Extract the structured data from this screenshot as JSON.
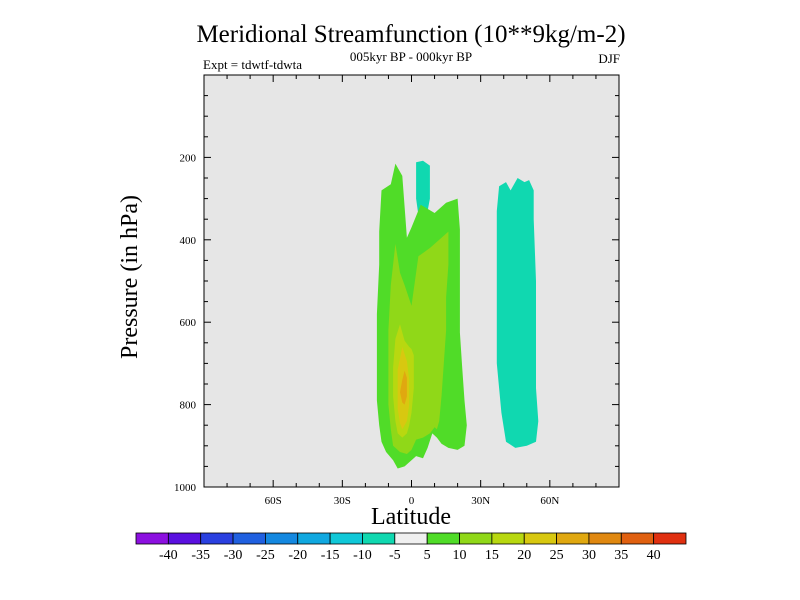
{
  "chart_data": {
    "type": "contour",
    "title": "Meridional Streamfunction (10**9kg/m-2)",
    "subtitle": "005kyr BP - 000kyr BP",
    "expt_label": "Expt = tdwtf-tdwta",
    "season": "DJF",
    "xlabel": "Latitude",
    "ylabel": "Pressure (in hPa)",
    "xlim": [
      -90,
      90
    ],
    "ylim": [
      0,
      1000
    ],
    "x_ticks": [
      {
        "value": -60,
        "label": "60S"
      },
      {
        "value": -30,
        "label": "30S"
      },
      {
        "value": 0,
        "label": "0"
      },
      {
        "value": 30,
        "label": "30N"
      },
      {
        "value": 60,
        "label": "60N"
      }
    ],
    "y_ticks": [
      {
        "value": 200,
        "label": "200"
      },
      {
        "value": 400,
        "label": "400"
      },
      {
        "value": 600,
        "label": "600"
      },
      {
        "value": 800,
        "label": "800"
      },
      {
        "value": 1000,
        "label": "1000"
      }
    ],
    "colorbar": {
      "labels": [
        "-40",
        "-35",
        "-30",
        "-25",
        "-20",
        "-15",
        "-10",
        "-5",
        "5",
        "10",
        "15",
        "20",
        "25",
        "30",
        "35",
        "40"
      ],
      "colors": [
        "#8c10e0",
        "#5a10e0",
        "#2a40e0",
        "#2060e0",
        "#1488e0",
        "#10a8e0",
        "#10c8d8",
        "#10d8b0",
        "#f0f0f0",
        "#50dc28",
        "#90d818",
        "#b8d810",
        "#d8c810",
        "#e0a810",
        "#e08810",
        "#e06010",
        "#e03010"
      ]
    },
    "regions": [
      {
        "name": "cell-sh-upper-teal",
        "level": "-10 to -5",
        "color": "#10d8b0",
        "points": [
          [
            2,
            212
          ],
          [
            5,
            208
          ],
          [
            8,
            220
          ],
          [
            8,
            260
          ],
          [
            8,
            300
          ],
          [
            7,
            330
          ],
          [
            5,
            345
          ],
          [
            3,
            340
          ],
          [
            2,
            300
          ],
          [
            2,
            250
          ]
        ]
      },
      {
        "name": "cell-nh-teal",
        "level": "-10 to -5",
        "color": "#10d8b0",
        "points": [
          [
            38,
            270
          ],
          [
            41,
            260
          ],
          [
            43,
            280
          ],
          [
            46,
            250
          ],
          [
            49,
            260
          ],
          [
            51,
            255
          ],
          [
            53,
            280
          ],
          [
            53,
            350
          ],
          [
            54,
            500
          ],
          [
            54,
            640
          ],
          [
            54,
            760
          ],
          [
            55,
            840
          ],
          [
            54,
            890
          ],
          [
            50,
            900
          ],
          [
            45,
            905
          ],
          [
            41,
            890
          ],
          [
            39,
            820
          ],
          [
            37,
            700
          ],
          [
            37,
            550
          ],
          [
            37,
            420
          ],
          [
            37,
            330
          ]
        ]
      },
      {
        "name": "cell-main-green",
        "level": "5 to 10",
        "color": "#50dc28",
        "points": [
          [
            -13,
            280
          ],
          [
            -9,
            265
          ],
          [
            -7,
            215
          ],
          [
            -4,
            245
          ],
          [
            -3,
            320
          ],
          [
            -2,
            395
          ],
          [
            0,
            370
          ],
          [
            4,
            315
          ],
          [
            10,
            335
          ],
          [
            15,
            310
          ],
          [
            20,
            300
          ],
          [
            21,
            375
          ],
          [
            21,
            450
          ],
          [
            21,
            540
          ],
          [
            21,
            625
          ],
          [
            22,
            710
          ],
          [
            23,
            790
          ],
          [
            24,
            850
          ],
          [
            23,
            900
          ],
          [
            20,
            910
          ],
          [
            16,
            905
          ],
          [
            13,
            895
          ],
          [
            11,
            880
          ],
          [
            9,
            870
          ],
          [
            7,
            905
          ],
          [
            5,
            930
          ],
          [
            2,
            925
          ],
          [
            0,
            935
          ],
          [
            -3,
            950
          ],
          [
            -6,
            955
          ],
          [
            -8,
            935
          ],
          [
            -11,
            915
          ],
          [
            -13,
            890
          ],
          [
            -14,
            850
          ],
          [
            -15,
            790
          ],
          [
            -15,
            690
          ],
          [
            -15,
            580
          ],
          [
            -14,
            460
          ],
          [
            -14,
            380
          ]
        ]
      },
      {
        "name": "cell-sh-yellowgreen",
        "level": "10 to 15",
        "color": "#90d818",
        "points": [
          [
            -9,
            510
          ],
          [
            -7,
            410
          ],
          [
            -5,
            480
          ],
          [
            -3,
            510
          ],
          [
            0,
            560
          ],
          [
            3,
            440
          ],
          [
            8,
            420
          ],
          [
            13,
            395
          ],
          [
            16,
            380
          ],
          [
            16,
            460
          ],
          [
            15,
            540
          ],
          [
            15,
            620
          ],
          [
            14,
            700
          ],
          [
            13,
            780
          ],
          [
            12,
            840
          ],
          [
            11,
            860
          ],
          [
            10,
            855
          ],
          [
            8,
            870
          ],
          [
            5,
            880
          ],
          [
            2,
            885
          ],
          [
            0,
            910
          ],
          [
            -2,
            920
          ],
          [
            -5,
            915
          ],
          [
            -8,
            900
          ],
          [
            -9,
            860
          ],
          [
            -10,
            800
          ],
          [
            -10,
            720
          ],
          [
            -10,
            620
          ]
        ]
      },
      {
        "name": "cell-center-yellow",
        "level": "15 to 20",
        "color": "#b8d810",
        "points": [
          [
            -7,
            640
          ],
          [
            -5,
            605
          ],
          [
            -3,
            645
          ],
          [
            -1,
            660
          ],
          [
            0,
            665
          ],
          [
            1,
            680
          ],
          [
            1,
            760
          ],
          [
            0,
            820
          ],
          [
            -1,
            850
          ],
          [
            -2,
            870
          ],
          [
            -4,
            880
          ],
          [
            -6,
            870
          ],
          [
            -7,
            840
          ],
          [
            -8,
            780
          ],
          [
            -8,
            710
          ]
        ]
      },
      {
        "name": "cell-core-gold",
        "level": "20 to 25",
        "color": "#d8c810",
        "points": [
          [
            -6,
            715
          ],
          [
            -4,
            660
          ],
          [
            -2,
            695
          ],
          [
            -1,
            740
          ],
          [
            -1,
            800
          ],
          [
            -2,
            840
          ],
          [
            -4,
            860
          ],
          [
            -5,
            845
          ],
          [
            -6,
            810
          ],
          [
            -6,
            760
          ]
        ]
      },
      {
        "name": "cell-core-orange",
        "level": "25 to 30",
        "color": "#e0a810",
        "points": [
          [
            -4,
            740
          ],
          [
            -3,
            718
          ],
          [
            -2,
            735
          ],
          [
            -2,
            780
          ],
          [
            -3,
            800
          ],
          [
            -4,
            795
          ],
          [
            -5,
            770
          ]
        ]
      }
    ]
  }
}
